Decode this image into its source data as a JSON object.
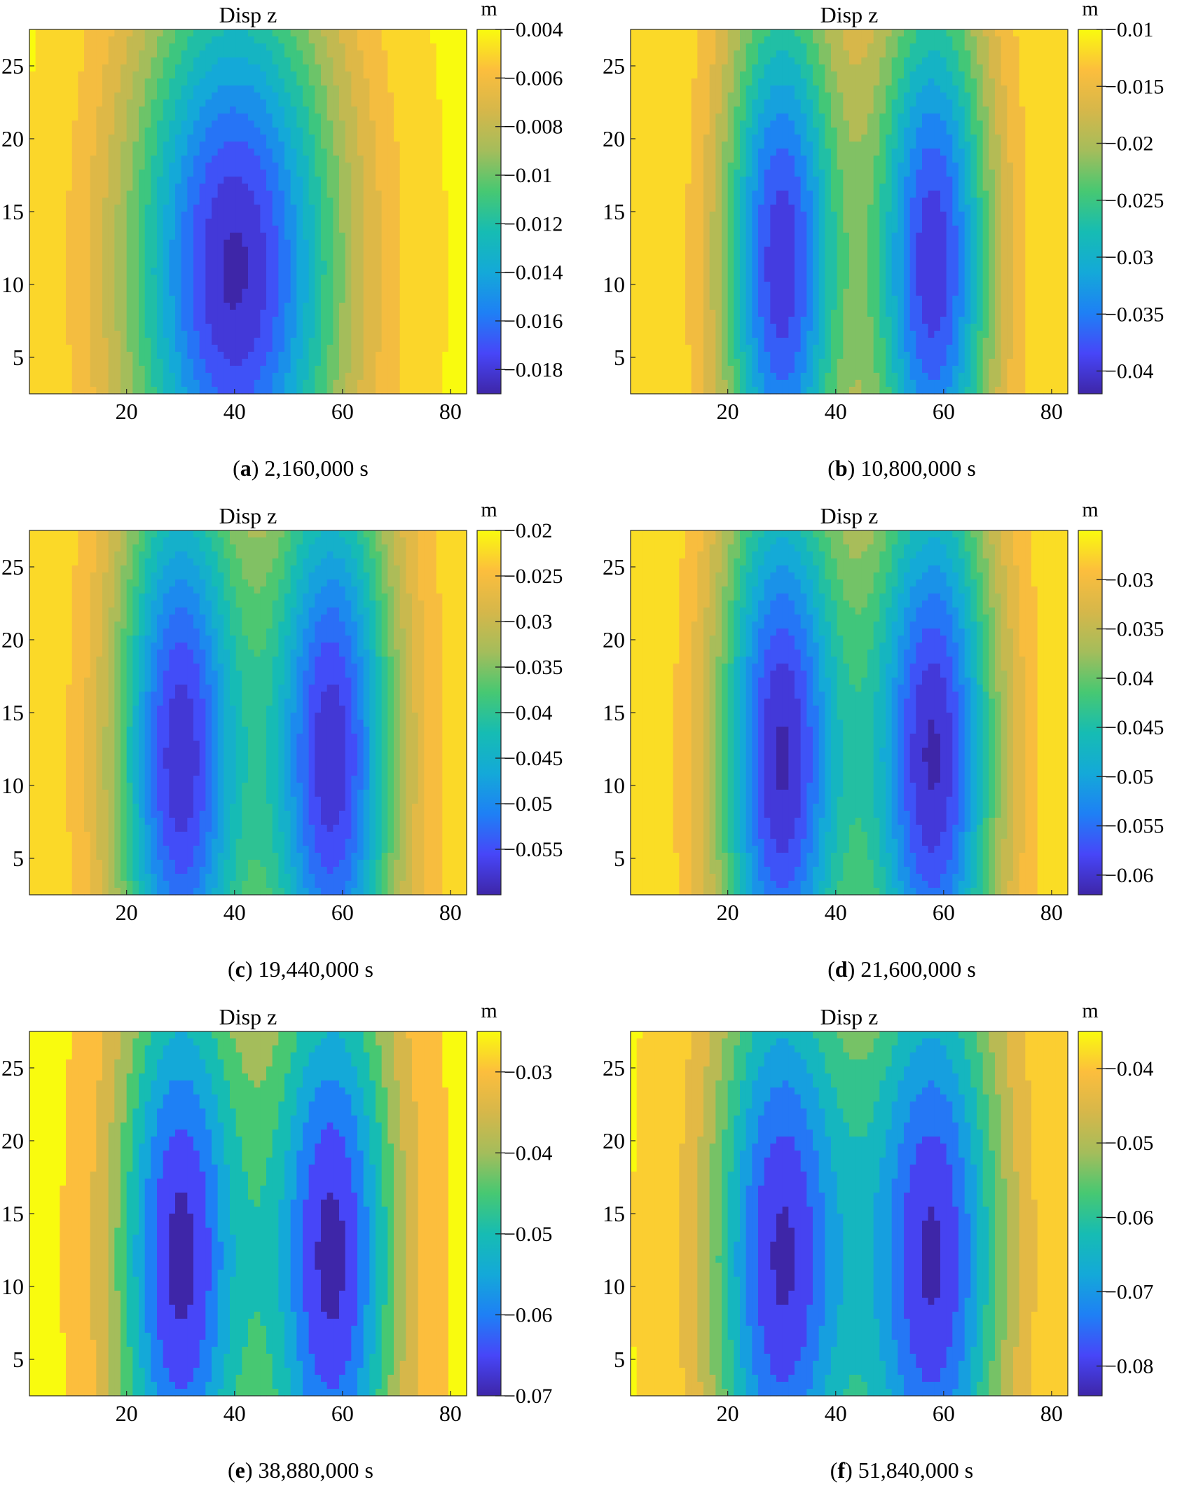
{
  "chart_data": [
    {
      "type": "heatmap",
      "panel": "a",
      "title": "Disp z",
      "unit": "m",
      "time_label": "2,160,000 s",
      "xlim": [
        2,
        83
      ],
      "ylim": [
        2.5,
        27.5
      ],
      "x_ticks": [
        "20",
        "40",
        "60",
        "80"
      ],
      "y_ticks": [
        "5",
        "10",
        "15",
        "20",
        "25"
      ],
      "clim": [
        -0.019,
        -0.004
      ],
      "colorbar_ticks": [
        "-0.004",
        "-0.006",
        "-0.008",
        "-0.01",
        "-0.012",
        "-0.014",
        "-0.016",
        "-0.018"
      ],
      "colorbar_values": [
        -0.004,
        -0.006,
        -0.008,
        -0.01,
        -0.012,
        -0.014,
        -0.016,
        -0.018
      ],
      "field": {
        "edge_value": -0.0042,
        "wells": [
          {
            "x": 40,
            "y": 11,
            "sx": 20,
            "sy": 22,
            "depth": 0.0145
          }
        ]
      }
    },
    {
      "type": "heatmap",
      "panel": "b",
      "title": "Disp z",
      "unit": "m",
      "time_label": "10,800,000 s",
      "xlim": [
        2,
        83
      ],
      "ylim": [
        2.5,
        27.5
      ],
      "x_ticks": [
        "20",
        "40",
        "60",
        "80"
      ],
      "y_ticks": [
        "5",
        "10",
        "15",
        "20",
        "25"
      ],
      "clim": [
        -0.042,
        -0.01
      ],
      "colorbar_ticks": [
        "-0.01",
        "-0.015",
        "-0.02",
        "-0.025",
        "-0.03",
        "-0.035",
        "-0.04"
      ],
      "colorbar_values": [
        -0.01,
        -0.015,
        -0.02,
        -0.025,
        -0.03,
        -0.035,
        -0.04
      ],
      "field": {
        "edge_value": -0.011,
        "wells": [
          {
            "x": 30,
            "y": 11.5,
            "sx": 11,
            "sy": 20,
            "depth": 0.029
          },
          {
            "x": 58,
            "y": 11.5,
            "sx": 11,
            "sy": 20,
            "depth": 0.029
          }
        ]
      }
    },
    {
      "type": "heatmap",
      "panel": "c",
      "title": "Disp z",
      "unit": "m",
      "time_label": "19,440,000 s",
      "xlim": [
        2,
        83
      ],
      "ylim": [
        2.5,
        27.5
      ],
      "x_ticks": [
        "20",
        "40",
        "60",
        "80"
      ],
      "y_ticks": [
        "5",
        "10",
        "15",
        "20",
        "25"
      ],
      "clim": [
        -0.06,
        -0.02
      ],
      "colorbar_ticks": [
        "-0.02",
        "-0.025",
        "-0.03",
        "-0.035",
        "-0.04",
        "-0.045",
        "-0.05",
        "-0.055"
      ],
      "colorbar_values": [
        -0.02,
        -0.025,
        -0.03,
        -0.035,
        -0.04,
        -0.045,
        -0.05,
        -0.055
      ],
      "field": {
        "edge_value": -0.022,
        "wells": [
          {
            "x": 30,
            "y": 12,
            "sx": 12,
            "sy": 22,
            "depth": 0.036
          },
          {
            "x": 58,
            "y": 12,
            "sx": 12,
            "sy": 22,
            "depth": 0.036
          }
        ]
      }
    },
    {
      "type": "heatmap",
      "panel": "d",
      "title": "Disp z",
      "unit": "m",
      "time_label": "21,600,000 s",
      "xlim": [
        2,
        83
      ],
      "ylim": [
        2.5,
        27.5
      ],
      "x_ticks": [
        "20",
        "40",
        "60",
        "80"
      ],
      "y_ticks": [
        "5",
        "10",
        "15",
        "20",
        "25"
      ],
      "clim": [
        -0.062,
        -0.025
      ],
      "colorbar_ticks": [
        "-0.03",
        "-0.035",
        "-0.04",
        "-0.045",
        "-0.05",
        "-0.055",
        "-0.06"
      ],
      "colorbar_values": [
        -0.03,
        -0.035,
        -0.04,
        -0.045,
        -0.05,
        -0.055,
        -0.06
      ],
      "field": {
        "edge_value": -0.026,
        "wells": [
          {
            "x": 30,
            "y": 12,
            "sx": 12,
            "sy": 22,
            "depth": 0.035
          },
          {
            "x": 58,
            "y": 12,
            "sx": 12,
            "sy": 22,
            "depth": 0.035
          }
        ]
      }
    },
    {
      "type": "heatmap",
      "panel": "e",
      "title": "Disp z",
      "unit": "m",
      "time_label": "38,880,000 s",
      "xlim": [
        2,
        83
      ],
      "ylim": [
        2.5,
        27.5
      ],
      "x_ticks": [
        "20",
        "40",
        "60",
        "80"
      ],
      "y_ticks": [
        "5",
        "10",
        "15",
        "20",
        "25"
      ],
      "clim": [
        -0.07,
        -0.025
      ],
      "colorbar_ticks": [
        "-0.03",
        "-0.04",
        "-0.05",
        "-0.06",
        "-0.07"
      ],
      "colorbar_values": [
        -0.03,
        -0.04,
        -0.05,
        -0.06,
        -0.07
      ],
      "field": {
        "edge_value": -0.026,
        "wells": [
          {
            "x": 30,
            "y": 12,
            "sx": 12,
            "sy": 22,
            "depth": 0.043
          },
          {
            "x": 58,
            "y": 12,
            "sx": 12,
            "sy": 22,
            "depth": 0.043
          }
        ]
      }
    },
    {
      "type": "heatmap",
      "panel": "f",
      "title": "Disp z",
      "unit": "m",
      "time_label": "51,840,000 s",
      "xlim": [
        2,
        83
      ],
      "ylim": [
        2.5,
        27.5
      ],
      "x_ticks": [
        "20",
        "40",
        "60",
        "80"
      ],
      "y_ticks": [
        "5",
        "10",
        "15",
        "20",
        "25"
      ],
      "clim": [
        -0.084,
        -0.035
      ],
      "colorbar_ticks": [
        "-0.04",
        "-0.05",
        "-0.06",
        "-0.07",
        "-0.08"
      ],
      "colorbar_values": [
        -0.04,
        -0.05,
        -0.06,
        -0.07,
        -0.08
      ],
      "field": {
        "edge_value": -0.036,
        "wells": [
          {
            "x": 30,
            "y": 12,
            "sx": 13,
            "sy": 23,
            "depth": 0.046
          },
          {
            "x": 58,
            "y": 12,
            "sx": 13,
            "sy": 23,
            "depth": 0.046
          }
        ]
      }
    }
  ],
  "colormap": [
    "#3e26a8",
    "#4746f8",
    "#1e80f5",
    "#14a9d8",
    "#16bcb3",
    "#47c872",
    "#a4bd5b",
    "#d6b74a",
    "#fcbe3d",
    "#f9fb0e"
  ]
}
